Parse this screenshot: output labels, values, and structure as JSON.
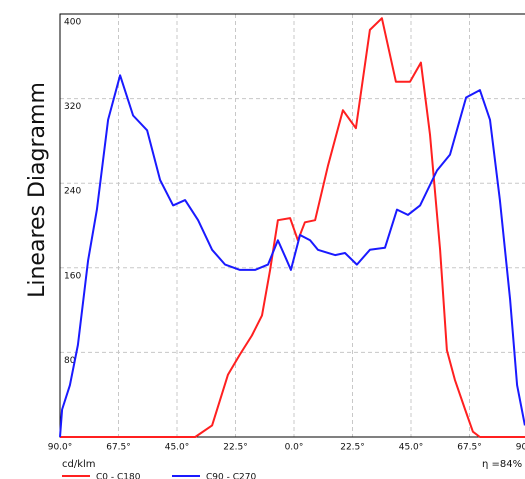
{
  "chart_data": {
    "type": "line",
    "title": "Lineares Diagramm",
    "unit_label": "cd/klm",
    "efficiency_label": "η =84%",
    "xlim": [
      -90,
      90
    ],
    "ylim": [
      0,
      400
    ],
    "xticks": [
      {
        "value": -90,
        "label": "90.0°"
      },
      {
        "value": -67.5,
        "label": "67.5°"
      },
      {
        "value": -45,
        "label": "45.0°"
      },
      {
        "value": -22.5,
        "label": "22.5°"
      },
      {
        "value": 0,
        "label": "0.0°"
      },
      {
        "value": 22.5,
        "label": "22.5°"
      },
      {
        "value": 45,
        "label": "45.0°"
      },
      {
        "value": 67.5,
        "label": "67.5°"
      },
      {
        "value": 90,
        "label": "90.0°"
      }
    ],
    "yticks": [
      80,
      160,
      240,
      320,
      400
    ],
    "grid": true,
    "series": [
      {
        "name": "C0 - C180",
        "color": "#ff2020",
        "x": [
          -90,
          -38,
          -31.5,
          -25.4,
          -20.8,
          -16.2,
          -12.3,
          -9.2,
          -6.2,
          -1.5,
          1.5,
          4.2,
          8.1,
          13.1,
          18.8,
          23.8,
          29.2,
          33.8,
          39.2,
          44.6,
          48.8,
          52.3,
          56.2,
          58.8,
          61.9,
          65.8,
          68.8,
          71.5,
          90
        ],
        "values": [
          0,
          0,
          11,
          59,
          78,
          96,
          115,
          158,
          205,
          207,
          186,
          203,
          205,
          257,
          309,
          292,
          385,
          396,
          336,
          336,
          354,
          286,
          177,
          82,
          54,
          26,
          5,
          0,
          0
        ]
      },
      {
        "name": "C90 - C270",
        "color": "#1a1aff",
        "x": [
          -90,
          -89.2,
          -86.2,
          -83.1,
          -79.2,
          -75.8,
          -71.5,
          -66.9,
          -61.9,
          -56.5,
          -51.5,
          -46.5,
          -41.9,
          -36.9,
          -31.5,
          -26.5,
          -20.8,
          -15,
          -10,
          -6.2,
          -3.1,
          -1.2,
          2.3,
          6.2,
          9.2,
          15.8,
          19.6,
          24.2,
          29.2,
          35,
          39.6,
          43.8,
          48.5,
          55,
          60,
          66.2,
          71.5,
          75.4,
          79.2,
          83.1,
          85.8,
          88.8
        ],
        "values": [
          0,
          26,
          49,
          87,
          167,
          215,
          300,
          342,
          304,
          290,
          243,
          219,
          224,
          205,
          177,
          163,
          158,
          158,
          163,
          186,
          169,
          158,
          191,
          186,
          177,
          172,
          174,
          163,
          177,
          179,
          215,
          210,
          219,
          252,
          267,
          321,
          328,
          300,
          224,
          130,
          49,
          11
        ]
      }
    ]
  }
}
